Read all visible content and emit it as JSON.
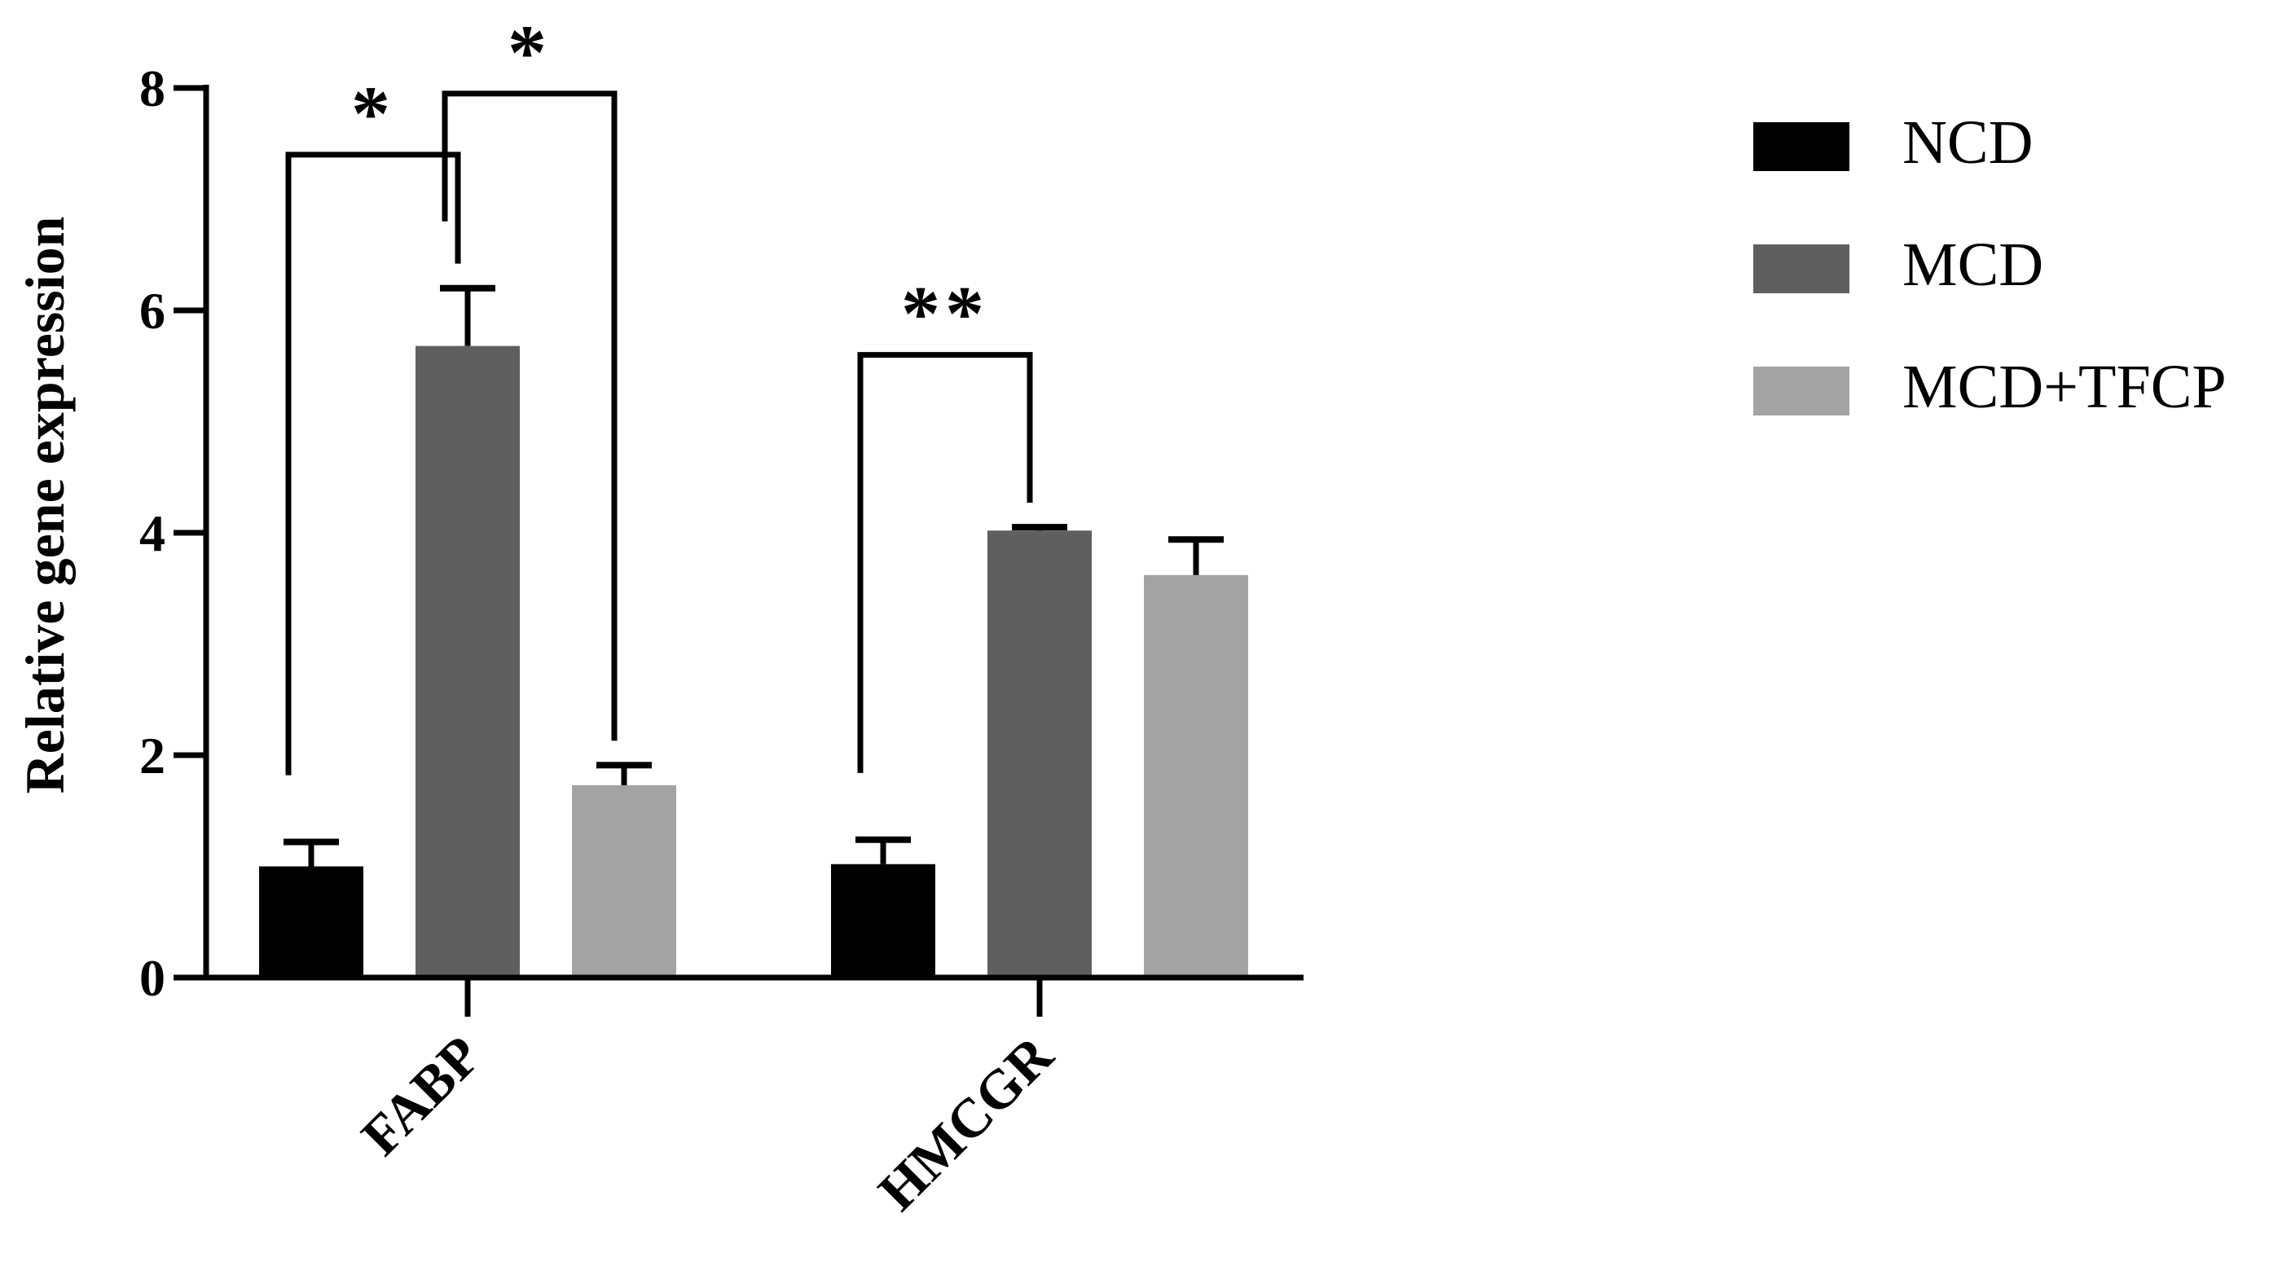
{
  "chart_data": {
    "type": "bar",
    "ylabel": "Relative gene expression",
    "ylim": [
      0,
      8
    ],
    "yticks": [
      "0",
      "2",
      "4",
      "6",
      "8"
    ],
    "categories": [
      "FABP",
      "HMCGR"
    ],
    "series": [
      {
        "name": "NCD",
        "color": "#000000",
        "values": [
          1.0,
          1.02
        ],
        "errors": [
          0.22,
          0.22
        ]
      },
      {
        "name": "MCD",
        "color": "#5f5f5f",
        "values": [
          5.68,
          4.02
        ],
        "errors": [
          0.52,
          0.03
        ]
      },
      {
        "name": "MCD+TFCP",
        "color": "#a3a3a3",
        "values": [
          1.73,
          3.62
        ],
        "errors": [
          0.18,
          0.32
        ]
      }
    ],
    "legend_position": "right",
    "significance": [
      {
        "category": 0,
        "from_series": 0,
        "to_series": 1,
        "label": "*",
        "bracket_y": 7.4
      },
      {
        "category": 0,
        "from_series": 1,
        "to_series": 2,
        "label": "*",
        "bracket_y": 7.95
      },
      {
        "category": 1,
        "from_series": 0,
        "to_series": 1,
        "label": "**",
        "bracket_y": 5.6
      }
    ]
  }
}
